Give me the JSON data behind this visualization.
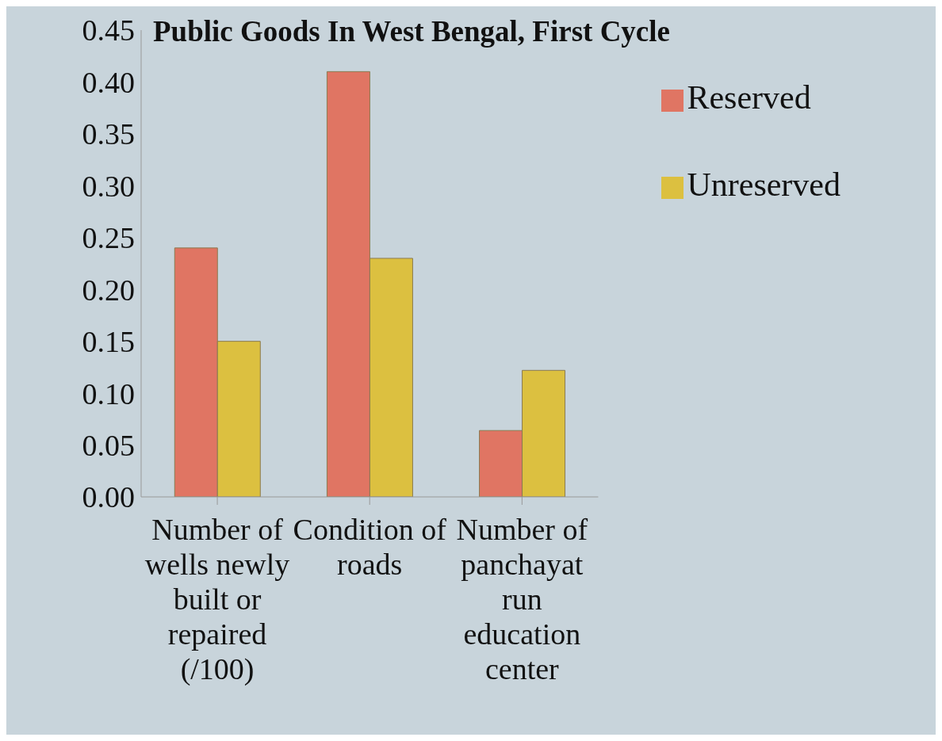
{
  "chart_data": {
    "type": "bar",
    "title": "Public Goods In West Bengal, First Cycle",
    "categories": [
      "Number of wells newly built or repaired (/100)",
      "Condition of roads",
      "Number of panchayat run education center"
    ],
    "series": [
      {
        "name": "Reserved",
        "color": "#e07563",
        "values": [
          0.24,
          0.41,
          0.064
        ]
      },
      {
        "name": "Unreserved",
        "color": "#dcc040",
        "values": [
          0.15,
          0.23,
          0.122
        ]
      }
    ],
    "ylim": [
      0,
      0.45
    ],
    "yticks": [
      {
        "value": 0,
        "label": "0.00"
      },
      0.05,
      {
        "value": 0.1,
        "label": "0.10"
      },
      0.15,
      {
        "value": 0.2,
        "label": "0.20"
      },
      0.25,
      {
        "value": 0.3,
        "label": "0.30"
      },
      0.35,
      {
        "value": 0.4,
        "label": "0.40"
      },
      0.45
    ],
    "grid": false,
    "legend": "top right"
  }
}
